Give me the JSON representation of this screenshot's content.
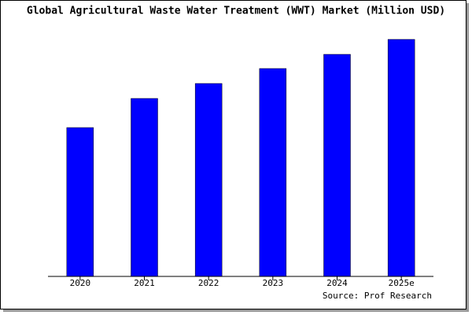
{
  "chart_data": {
    "type": "bar",
    "title": "Global Agricultural Waste Water Treatment (WWT) Market (Million USD)",
    "categories": [
      "2020",
      "2021",
      "2022",
      "2023",
      "2024",
      "2025e"
    ],
    "values": [
      189,
      226,
      245,
      264,
      282,
      301
    ],
    "color": "#0000ff",
    "ylim": [
      0,
      301
    ],
    "source": "Source: Prof Research"
  }
}
